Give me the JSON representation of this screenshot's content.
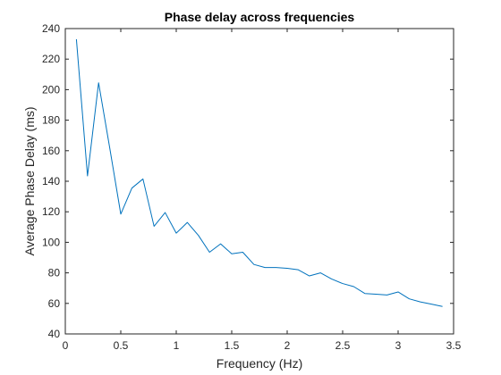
{
  "chart_data": {
    "type": "line",
    "title": "Phase delay across frequencies",
    "xlabel": "Frequency (Hz)",
    "ylabel": "Average Phase Delay (ms)",
    "xlim": [
      0,
      3.5
    ],
    "ylim": [
      40,
      240
    ],
    "xticks": [
      0,
      0.5,
      1,
      1.5,
      2,
      2.5,
      3,
      3.5
    ],
    "xtick_labels": [
      "0",
      "0.5",
      "1",
      "1.5",
      "2",
      "2.5",
      "3",
      "3.5"
    ],
    "yticks": [
      40,
      60,
      80,
      100,
      120,
      140,
      160,
      180,
      200,
      220,
      240
    ],
    "ytick_labels": [
      "40",
      "60",
      "80",
      "100",
      "120",
      "140",
      "160",
      "180",
      "200",
      "220",
      "240"
    ],
    "grid": false,
    "line_color": "#0072BD",
    "series": [
      {
        "x": [
          0.1,
          0.2,
          0.3,
          0.4,
          0.5,
          0.6,
          0.7,
          0.8,
          0.9,
          1.0,
          1.1,
          1.2,
          1.3,
          1.4,
          1.5,
          1.6,
          1.7,
          1.8,
          1.9,
          2.0,
          2.1,
          2.2,
          2.3,
          2.4,
          2.5,
          2.6,
          2.7,
          2.8,
          2.9,
          3.0,
          3.1,
          3.2,
          3.3,
          3.4
        ],
        "values": [
          233,
          143.5,
          204.5,
          162,
          118.5,
          135.5,
          141.5,
          110.5,
          119.5,
          106,
          113,
          104.5,
          93.5,
          99,
          92.5,
          93.5,
          85.5,
          83.5,
          83.5,
          83,
          82,
          78,
          80,
          76,
          73,
          71,
          66.5,
          66,
          65.5,
          67.5,
          63,
          61,
          59.5,
          58
        ]
      }
    ]
  }
}
